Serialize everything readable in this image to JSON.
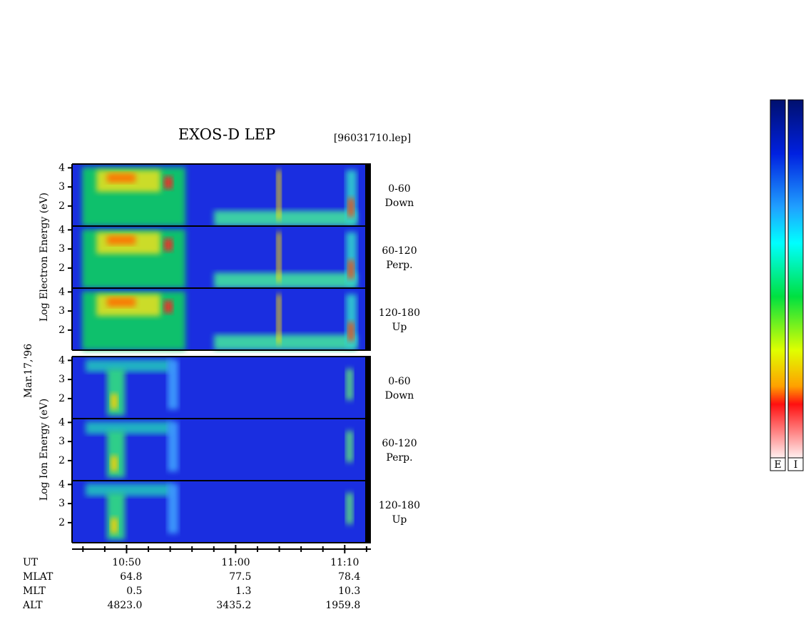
{
  "chart_data": {
    "type": "spectrogram",
    "title": "EXOS-D LEP",
    "file": "[96031710.lep]",
    "date_label": "Mar.17,'96",
    "ylim": [
      0.95,
      4.2
    ],
    "yticks": [
      2,
      3,
      4
    ],
    "xlim": [
      45,
      72.4
    ],
    "xticks": [
      {
        "value": 50,
        "label": "10:50"
      },
      {
        "value": 60,
        "label": "11:00"
      },
      {
        "value": 70,
        "label": "11:10"
      }
    ],
    "xminorticks": [
      46,
      48,
      52,
      54,
      56,
      58,
      62,
      64,
      66,
      68,
      72
    ],
    "groups": [
      {
        "ylabel": "Log Electron Energy (eV)",
        "panels": [
          {
            "angle": "0-60",
            "direction": "Down"
          },
          {
            "angle": "60-120",
            "direction": "Perp."
          },
          {
            "angle": "120-180",
            "direction": "Up"
          }
        ]
      },
      {
        "ylabel": "Log Ion Energy (eV)",
        "panels": [
          {
            "angle": "0-60",
            "direction": "Down"
          },
          {
            "angle": "60-120",
            "direction": "Perp."
          },
          {
            "angle": "120-180",
            "direction": "Up"
          }
        ]
      }
    ],
    "ephemeris": [
      {
        "name": "UT"
      },
      {
        "name": "MLAT",
        "values": [
          "64.8",
          "77.5",
          "78.4"
        ]
      },
      {
        "name": "MLT",
        "values": [
          "0.5",
          "1.3",
          "10.3"
        ]
      },
      {
        "name": "ALT",
        "values": [
          "4823.0",
          "3435.2",
          "1959.8"
        ]
      }
    ],
    "colorbars": [
      "E",
      "I"
    ]
  }
}
